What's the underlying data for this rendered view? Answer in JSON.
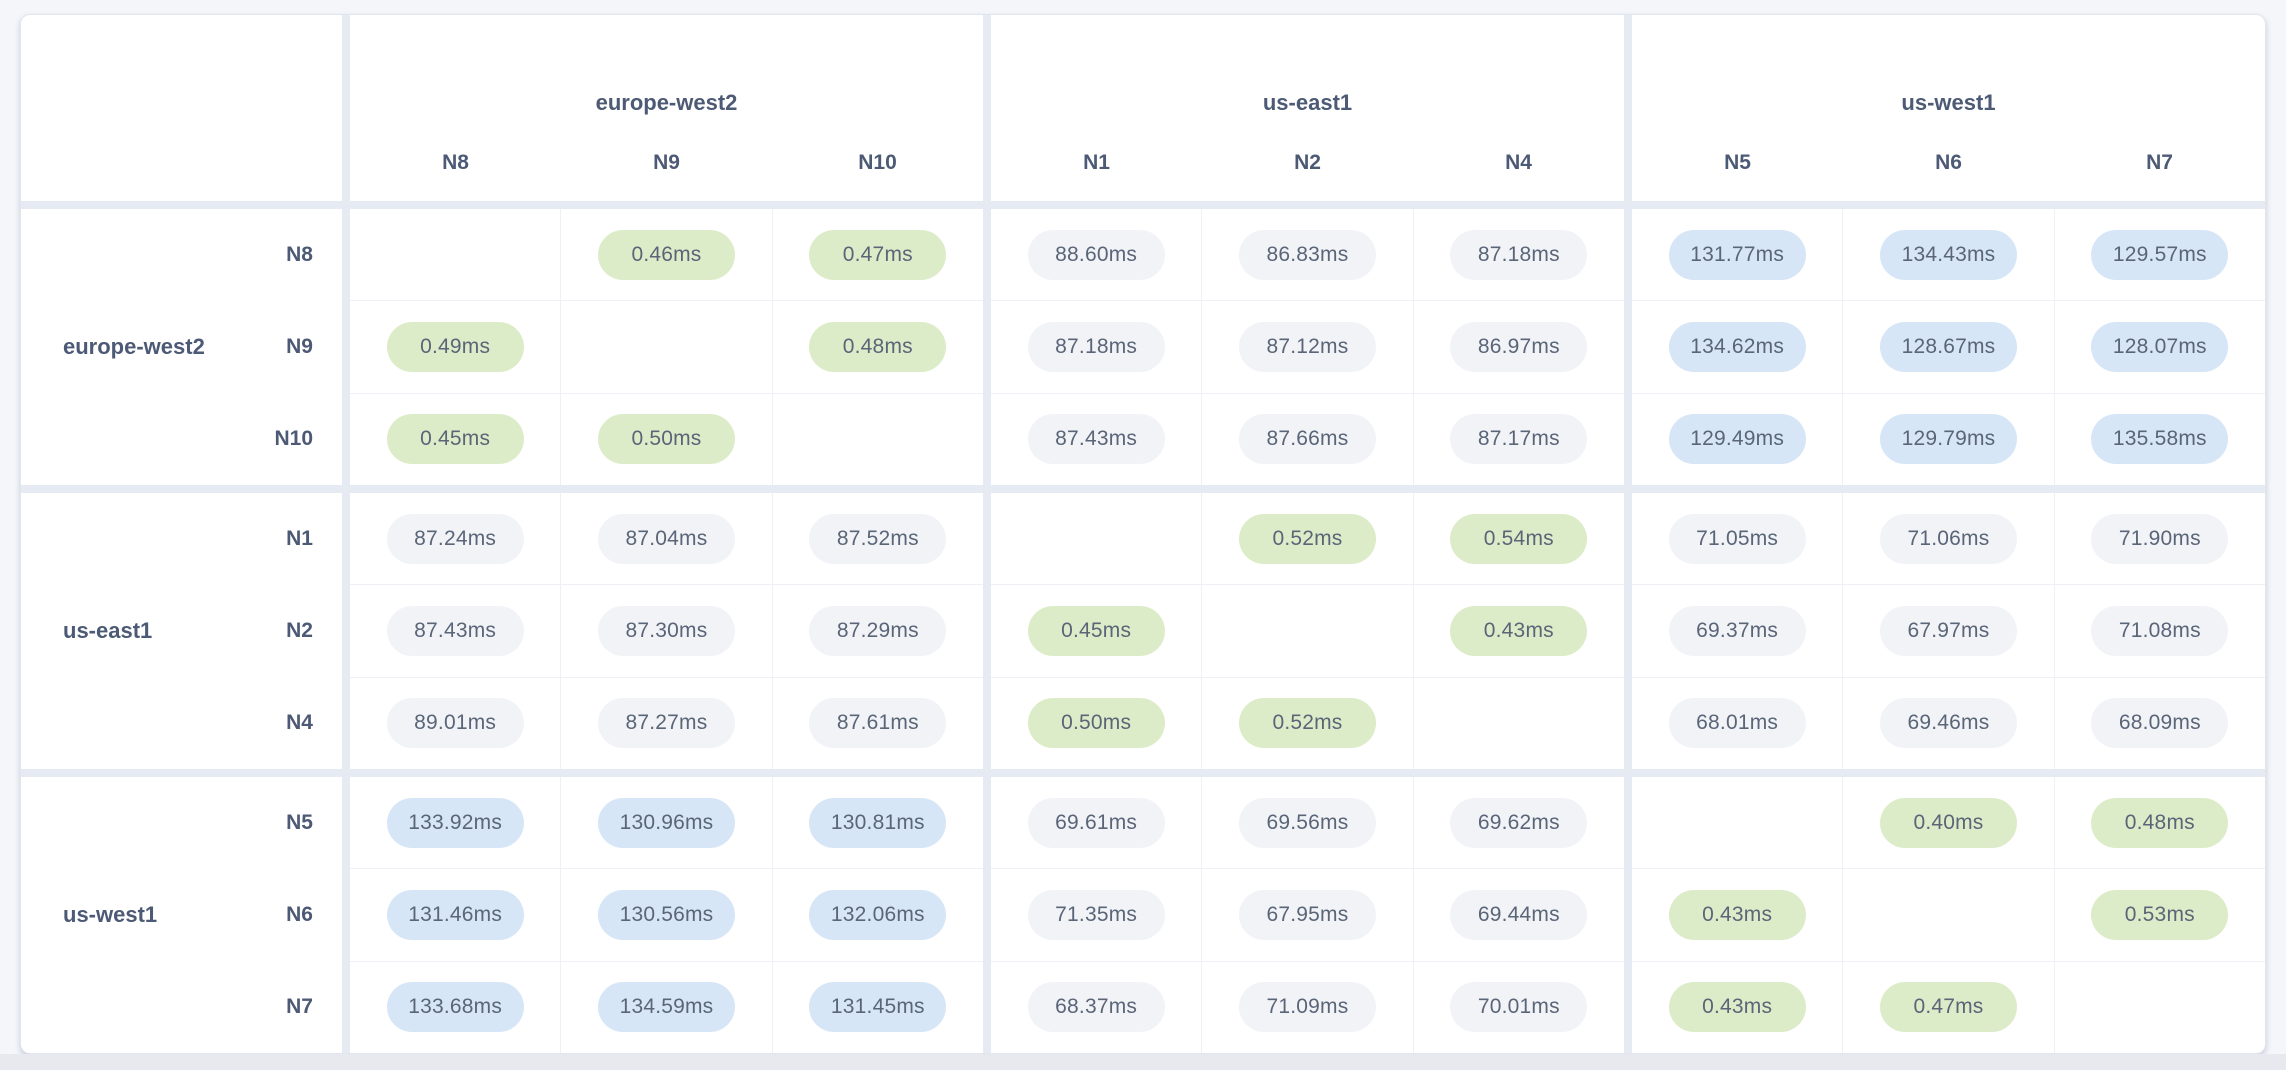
{
  "colors": {
    "page_bg": "#f4f6fa",
    "card_bg": "#ffffff",
    "divider": "#e6eaf2",
    "cell_border": "#edf0f5",
    "bottom_strip": "#e8e9ee",
    "header_text": "#4d5a75",
    "value_text": "#5a6578",
    "pill_fast": "#ddecc8",
    "pill_medium": "#f1f3f7",
    "pill_slow": "#d6e6f7"
  },
  "chart_data": {
    "type": "heatmap",
    "title": "",
    "unit": "ms",
    "x": [
      "N8",
      "N9",
      "N10",
      "N1",
      "N2",
      "N4",
      "N5",
      "N6",
      "N7"
    ],
    "y": [
      "N8",
      "N9",
      "N10",
      "N1",
      "N2",
      "N4",
      "N5",
      "N6",
      "N7"
    ],
    "x_groups": [
      {
        "label": "europe-west2",
        "nodes": [
          "N8",
          "N9",
          "N10"
        ]
      },
      {
        "label": "us-east1",
        "nodes": [
          "N1",
          "N2",
          "N4"
        ]
      },
      {
        "label": "us-west1",
        "nodes": [
          "N5",
          "N6",
          "N7"
        ]
      }
    ],
    "y_groups": [
      {
        "label": "europe-west2",
        "nodes": [
          "N8",
          "N9",
          "N10"
        ]
      },
      {
        "label": "us-east1",
        "nodes": [
          "N1",
          "N2",
          "N4"
        ]
      },
      {
        "label": "us-west1",
        "nodes": [
          "N5",
          "N6",
          "N7"
        ]
      }
    ],
    "values": [
      [
        null,
        0.46,
        0.47,
        88.6,
        86.83,
        87.18,
        131.77,
        134.43,
        129.57
      ],
      [
        0.49,
        null,
        0.48,
        87.18,
        87.12,
        86.97,
        134.62,
        128.67,
        128.07
      ],
      [
        0.45,
        0.5,
        null,
        87.43,
        87.66,
        87.17,
        129.49,
        129.79,
        135.58
      ],
      [
        87.24,
        87.04,
        87.52,
        null,
        0.52,
        0.54,
        71.05,
        71.06,
        71.9
      ],
      [
        87.43,
        87.3,
        87.29,
        0.45,
        null,
        0.43,
        69.37,
        67.97,
        71.08
      ],
      [
        89.01,
        87.27,
        87.61,
        0.5,
        0.52,
        null,
        68.01,
        69.46,
        68.09
      ],
      [
        133.92,
        130.96,
        130.81,
        69.61,
        69.56,
        69.62,
        null,
        0.4,
        0.48
      ],
      [
        131.46,
        130.56,
        132.06,
        71.35,
        67.95,
        69.44,
        0.43,
        null,
        0.53
      ],
      [
        133.68,
        134.59,
        131.45,
        68.37,
        71.09,
        70.01,
        0.43,
        0.47,
        null
      ]
    ],
    "value_format": "two-decimals with 'ms' suffix",
    "color_rule": {
      "fast_green_under_ms": 1,
      "medium_gray_under_ms": 100,
      "slow_blue_at_or_above_ms": 100
    },
    "legend_position": "none",
    "grid": true
  }
}
